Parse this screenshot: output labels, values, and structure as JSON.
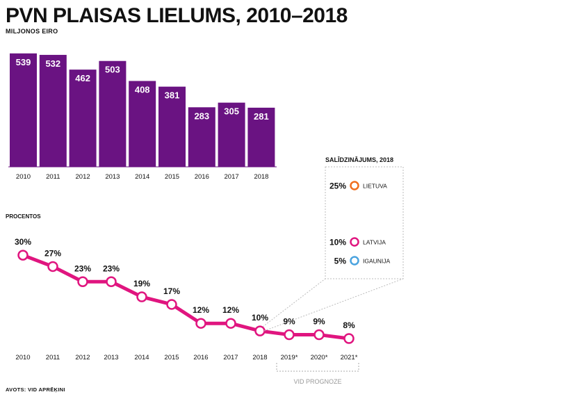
{
  "header": {
    "title": "PVN PLAISAS LIELUMS, 2010–2018",
    "subtitle": "MILJONOS EIRO"
  },
  "source": "AVOTS: VID APRĒĶINI",
  "colors": {
    "bar": "#6a1382",
    "line": "#e0157f",
    "lithuania": "#f06e1e",
    "latvia": "#e0157f",
    "estonia": "#4aa3df"
  },
  "chart_data": [
    {
      "type": "bar",
      "title": "PVN PLAISAS LIELUMS, 2010–2018",
      "subtitle": "MILJONOS EIRO",
      "categories": [
        "2010",
        "2011",
        "2012",
        "2013",
        "2014",
        "2015",
        "2016",
        "2017",
        "2018"
      ],
      "values": [
        539,
        532,
        462,
        503,
        408,
        381,
        283,
        305,
        281
      ],
      "ylim": [
        0,
        560
      ]
    },
    {
      "type": "line",
      "ylabel": "PROCENTOS",
      "categories": [
        "2010",
        "2011",
        "2012",
        "2013",
        "2014",
        "2015",
        "2016",
        "2017",
        "2018",
        "2019*",
        "2020*",
        "2021*"
      ],
      "values": [
        30,
        27,
        23,
        23,
        19,
        17,
        12,
        12,
        10,
        9,
        9,
        8
      ],
      "value_labels": [
        "30%",
        "27%",
        "23%",
        "23%",
        "19%",
        "17%",
        "12%",
        "12%",
        "10%",
        "9%",
        "9%",
        "8%"
      ],
      "forecast_label": "VID PROGNOZE",
      "ylim": [
        5,
        32
      ]
    }
  ],
  "comparison": {
    "title": "SALĪDZINĀJUMS, 2018",
    "items": [
      {
        "value": "25%",
        "label": "LIETUVA",
        "color": "#f06e1e",
        "num": 25
      },
      {
        "value": "10%",
        "label": "LATVIJA",
        "color": "#e0157f",
        "num": 10
      },
      {
        "value": "5%",
        "label": "IGAUNIJA",
        "color": "#4aa3df",
        "num": 5
      }
    ]
  }
}
